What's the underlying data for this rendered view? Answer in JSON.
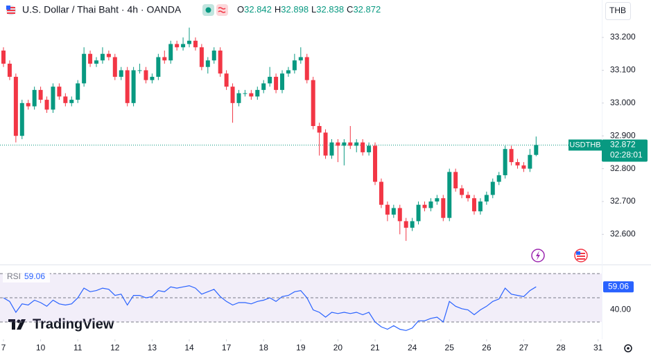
{
  "chart_data": [
    {
      "type": "candlestick",
      "title": "U.S. Dollar / Thai Baht · 4h · OANDA",
      "ohlc_labels": [
        "O",
        "H",
        "L",
        "C"
      ],
      "symbol": "USDTHB",
      "countdown": "02:28:01",
      "currency": "THB",
      "logo": "TradingView",
      "up_color": "#089981",
      "down_color": "#f23645",
      "open": [
        33.16,
        33.12,
        33.08,
        32.9,
        33.0,
        32.99,
        33.04,
        33.01,
        32.98,
        33.05,
        33.02,
        33.0,
        33.01,
        33.06,
        33.15,
        33.12,
        33.13,
        33.15,
        33.14,
        33.08,
        33.1,
        33.0,
        33.1,
        33.1,
        33.07,
        33.08,
        33.14,
        33.13,
        33.18,
        33.17,
        33.18,
        33.19,
        33.17,
        33.11,
        33.13,
        33.16,
        33.09,
        33.05,
        33.0,
        33.03,
        33.03,
        33.02,
        33.04,
        33.06,
        33.08,
        33.04,
        33.09,
        33.1,
        33.13,
        33.14,
        33.07,
        32.93,
        32.91,
        32.84,
        32.88,
        32.87,
        32.88,
        32.87,
        32.88,
        32.85,
        32.87,
        32.76,
        32.69,
        32.66,
        32.68,
        32.64,
        32.62,
        32.64,
        32.69,
        32.68,
        32.7,
        32.71,
        32.65,
        32.79,
        32.74,
        32.72,
        32.71,
        32.67,
        32.7,
        32.72,
        32.76,
        32.78,
        32.86,
        32.82,
        32.81,
        32.8,
        32.842
      ],
      "high": [
        33.17,
        33.13,
        33.09,
        33.01,
        33.01,
        33.05,
        33.05,
        33.02,
        33.06,
        33.06,
        33.03,
        33.02,
        33.07,
        33.17,
        33.16,
        33.14,
        33.17,
        33.16,
        33.15,
        33.11,
        33.11,
        33.11,
        33.12,
        33.11,
        33.09,
        33.15,
        33.16,
        33.19,
        33.19,
        33.2,
        33.23,
        33.2,
        33.18,
        33.14,
        33.17,
        33.17,
        33.1,
        33.06,
        33.04,
        33.04,
        33.04,
        33.05,
        33.07,
        33.11,
        33.09,
        33.1,
        33.11,
        33.15,
        33.17,
        33.15,
        33.08,
        32.94,
        32.92,
        32.89,
        32.89,
        32.89,
        32.93,
        32.89,
        32.89,
        32.88,
        32.88,
        32.77,
        32.7,
        32.69,
        32.69,
        32.65,
        32.65,
        32.7,
        32.7,
        32.71,
        32.72,
        32.72,
        32.8,
        32.8,
        32.75,
        32.73,
        32.72,
        32.71,
        32.73,
        32.77,
        32.79,
        32.87,
        32.87,
        32.83,
        32.82,
        32.86,
        32.898
      ],
      "low": [
        33.11,
        33.07,
        32.88,
        32.89,
        32.98,
        32.98,
        33.0,
        32.97,
        32.97,
        33.01,
        32.99,
        32.99,
        33.0,
        33.05,
        33.11,
        33.11,
        33.12,
        33.13,
        33.07,
        33.07,
        32.99,
        32.99,
        33.09,
        33.06,
        33.06,
        33.07,
        33.12,
        33.12,
        33.16,
        33.16,
        33.17,
        33.16,
        33.1,
        33.09,
        33.12,
        33.08,
        33.04,
        32.94,
        32.99,
        33.02,
        33.01,
        33.01,
        33.03,
        33.05,
        33.03,
        33.03,
        33.08,
        33.09,
        33.12,
        33.06,
        32.92,
        32.84,
        32.83,
        32.83,
        32.82,
        32.81,
        32.86,
        32.85,
        32.84,
        32.84,
        32.75,
        32.68,
        32.64,
        32.65,
        32.6,
        32.58,
        32.61,
        32.63,
        32.67,
        32.67,
        32.69,
        32.64,
        32.64,
        32.73,
        32.71,
        32.7,
        32.66,
        32.66,
        32.69,
        32.71,
        32.75,
        32.77,
        32.81,
        32.8,
        32.79,
        32.79,
        32.838
      ],
      "close": [
        33.12,
        33.08,
        32.9,
        33.0,
        32.99,
        33.04,
        33.01,
        32.98,
        33.05,
        33.02,
        33.0,
        33.01,
        33.06,
        33.15,
        33.12,
        33.13,
        33.15,
        33.14,
        33.08,
        33.1,
        33.0,
        33.1,
        33.1,
        33.07,
        33.08,
        33.14,
        33.13,
        33.18,
        33.17,
        33.18,
        33.19,
        33.17,
        33.11,
        33.13,
        33.16,
        33.09,
        33.05,
        33.0,
        33.03,
        33.03,
        33.02,
        33.04,
        33.06,
        33.08,
        33.04,
        33.09,
        33.1,
        33.13,
        33.14,
        33.07,
        32.93,
        32.91,
        32.84,
        32.88,
        32.87,
        32.88,
        32.87,
        32.88,
        32.85,
        32.87,
        32.76,
        32.69,
        32.66,
        32.68,
        32.64,
        32.62,
        32.64,
        32.69,
        32.68,
        32.7,
        32.71,
        32.65,
        32.79,
        32.74,
        32.72,
        32.71,
        32.67,
        32.7,
        32.72,
        32.76,
        32.78,
        32.86,
        32.82,
        32.81,
        32.8,
        32.842,
        32.872
      ],
      "xlim": [
        -0.56,
        96.6
      ],
      "xticks": [
        {
          "value": 0,
          "label": "7"
        },
        {
          "value": 6,
          "label": "10"
        },
        {
          "value": 12,
          "label": "11"
        },
        {
          "value": 18,
          "label": "12"
        },
        {
          "value": 24,
          "label": "13"
        },
        {
          "value": 30,
          "label": "14"
        },
        {
          "value": 36,
          "label": "17"
        },
        {
          "value": 42,
          "label": "18"
        },
        {
          "value": 48,
          "label": "19"
        },
        {
          "value": 54,
          "label": "20"
        },
        {
          "value": 60,
          "label": "21"
        },
        {
          "value": 66,
          "label": "24"
        },
        {
          "value": 72,
          "label": "25"
        },
        {
          "value": 78,
          "label": "26"
        },
        {
          "value": 84,
          "label": "27"
        },
        {
          "value": 90,
          "label": "28"
        },
        {
          "value": 96,
          "label": "31"
        }
      ],
      "ylim": [
        32.51,
        33.255
      ],
      "yticks": [
        {
          "value": 33.2,
          "label": "33.200"
        },
        {
          "value": 33.1,
          "label": "33.100"
        },
        {
          "value": 33.0,
          "label": "33.000"
        },
        {
          "value": 32.9,
          "label": "32.900"
        },
        {
          "value": 32.8,
          "label": "32.800"
        },
        {
          "value": 32.7,
          "label": "32.700"
        },
        {
          "value": 32.6,
          "label": "32.600"
        }
      ]
    },
    {
      "type": "line",
      "name": "RSI",
      "color": "#2962ff",
      "values": [
        50,
        47,
        38,
        45,
        44,
        48,
        46,
        43,
        48,
        45,
        44,
        45,
        50,
        58,
        55,
        56,
        58,
        57,
        52,
        53,
        44,
        52,
        52,
        50,
        51,
        56,
        55,
        59,
        58,
        59,
        60,
        58,
        53,
        55,
        57,
        51,
        47,
        44,
        46,
        46,
        45,
        47,
        48,
        50,
        47,
        51,
        52,
        55,
        56,
        50,
        40,
        38,
        34,
        38,
        37,
        38,
        37,
        38,
        36,
        38,
        30,
        26,
        24,
        27,
        24,
        23,
        25,
        31,
        31,
        33,
        34,
        30,
        47,
        43,
        41,
        40,
        36,
        40,
        43,
        47,
        49,
        58,
        53,
        52,
        51,
        56,
        59.06
      ],
      "levels": [
        30,
        50,
        70
      ],
      "ylim": [
        20.3,
        76.9
      ],
      "yticks": [
        {
          "value": 40,
          "label": "40.00"
        }
      ]
    }
  ]
}
